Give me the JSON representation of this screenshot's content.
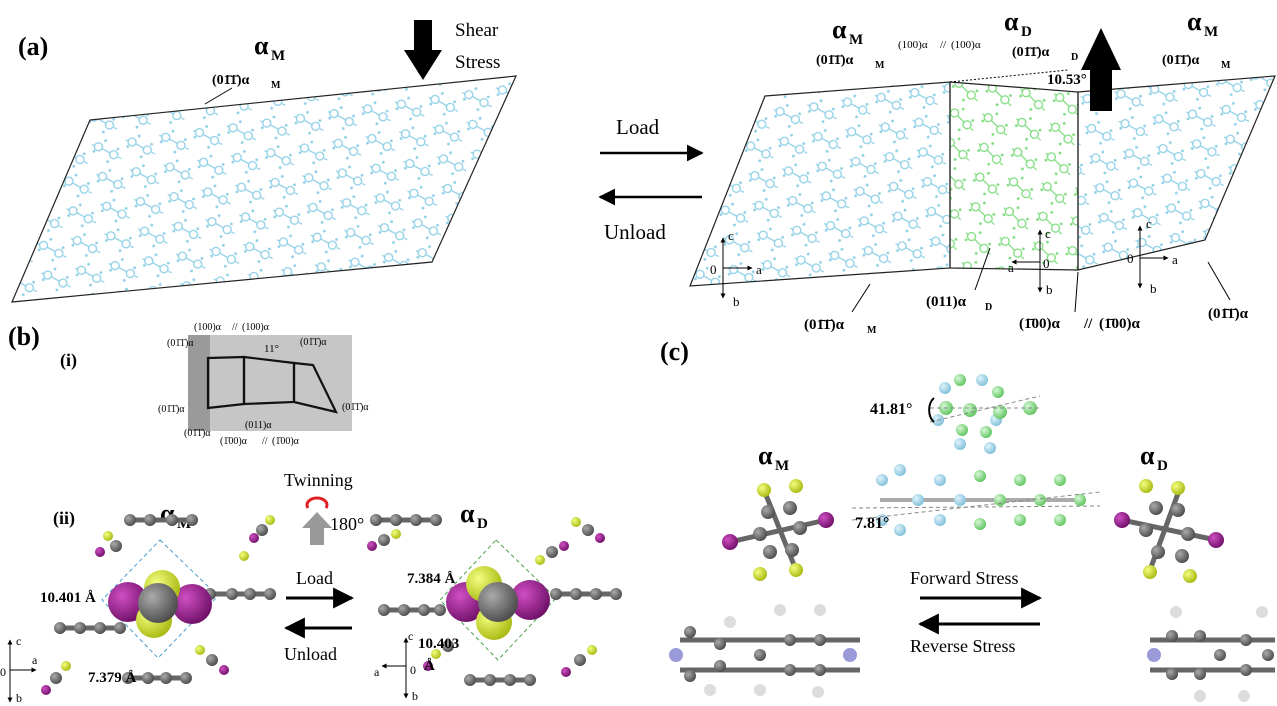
{
  "panel_a": {
    "label": "(a)",
    "alpha_m": "α",
    "sub_m": "M",
    "sub_d": "D",
    "shear_stress_1": "Shear",
    "shear_stress_2": "Stress",
    "load": "Load",
    "unload": "Unload",
    "plane_011": "(01̄1̄)α",
    "plane_011_pos": "(011)α",
    "plane_100": "(100)α",
    "plane_100_twin": "(100)α",
    "plane_m100": "(1̄00)α",
    "angle": "10.53°",
    "axis_c": "c",
    "axis_a": "a",
    "axis_b": "b",
    "axis_0": "0"
  },
  "panel_b": {
    "label": "(b)",
    "sub_i": "(i)",
    "sub_ii": "(ii)",
    "angle_i": "11°",
    "twinning": "Twinning",
    "rotation": "180°",
    "load": "Load",
    "unload": "Unload",
    "dist_1": "10.401 Å",
    "dist_2": "7.379 Å",
    "dist_3": "7.384 Å",
    "dist_4": "10.403",
    "dist_4_unit": "Å"
  },
  "panel_c": {
    "label": "(c)",
    "angle_1": "41.81°",
    "angle_2": "7.81°",
    "forward": "Forward Stress",
    "reverse": "Reverse Stress"
  },
  "colors": {
    "alpha_m_molecule": "#8ecfe6",
    "alpha_d_molecule": "#7fdc7f",
    "iodine": "#9b1a8c",
    "fluorine": "#d6e62a",
    "carbon": "#6e6e6e",
    "nitrogen": "#9a9ad8",
    "hydrogen": "#cccccc",
    "red_arrow": "#e02020"
  }
}
